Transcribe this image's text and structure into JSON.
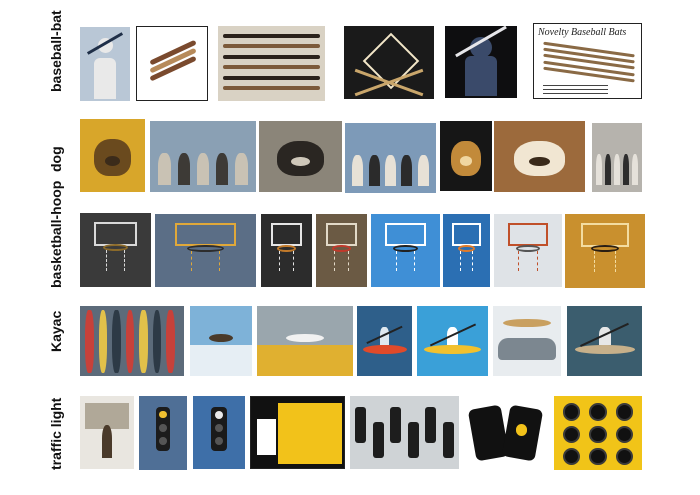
{
  "rows": [
    {
      "label": "baseball-bat",
      "thumbs": [
        {
          "name": "baseball-bat-photo-1",
          "bg": "#b9c7d6",
          "accent": "#1f2f48",
          "accent2": "#e9e9e9",
          "motif": "person"
        },
        {
          "name": "baseball-bat-photo-2",
          "bg": "#ffffff",
          "accent": "#7a4a2e",
          "accent2": "#b78a5a",
          "motif": "bats-diagonal",
          "framed": true
        },
        {
          "name": "baseball-bat-photo-3",
          "bg": "#d9d2c4",
          "accent": "#2a211a",
          "accent2": "#7c5a3a",
          "motif": "bats-horizontal"
        },
        {
          "name": "baseball-bat-photo-4",
          "bg": "#1a1a1a",
          "accent": "#c9a66b",
          "accent2": "#f2e6c8",
          "motif": "diamond"
        },
        {
          "name": "baseball-bat-photo-5",
          "bg": "#0e0e10",
          "accent": "#e6e6ea",
          "accent2": "#3a4a6a",
          "motif": "batter"
        },
        {
          "name": "baseball-bat-photo-6",
          "bg": "#ffffff",
          "accent": "#8a6a45",
          "accent2": "#444444",
          "motif": "catalog",
          "framed": true,
          "caption": "Novelty Baseball Bats"
        }
      ]
    },
    {
      "label": "dog",
      "thumbs": [
        {
          "name": "dog-photo-1",
          "bg": "#d8a62a",
          "accent": "#6a4a1e",
          "accent2": "#3b2b1a",
          "motif": "dog"
        },
        {
          "name": "dog-photo-2",
          "bg": "#8aa0b4",
          "accent": "#3d3a36",
          "accent2": "#c9c2b4",
          "motif": "street"
        },
        {
          "name": "dog-photo-3",
          "bg": "#8b8579",
          "accent": "#2a2622",
          "accent2": "#cfc8ba",
          "motif": "dog"
        },
        {
          "name": "dog-photo-4",
          "bg": "#7d9ab8",
          "accent": "#2b2b2b",
          "accent2": "#e7e1d6",
          "motif": "group"
        },
        {
          "name": "dog-photo-5",
          "bg": "#161616",
          "accent": "#c28a3a",
          "accent2": "#f0d6a0",
          "motif": "dog"
        },
        {
          "name": "dog-photo-6",
          "bg": "#9c6a3c",
          "accent": "#f1e6d2",
          "accent2": "#3a2a1a",
          "motif": "dog-face"
        },
        {
          "name": "dog-photo-7",
          "bg": "#b6b3ad",
          "accent": "#2d2d2d",
          "accent2": "#e5e1da",
          "motif": "group"
        }
      ]
    },
    {
      "label": "basketball-hoop",
      "thumbs": [
        {
          "name": "basketball-hoop-photo-1",
          "bg": "#3a3a3a",
          "accent": "#d9d9d9",
          "accent2": "#8b6a2a",
          "motif": "hoop"
        },
        {
          "name": "basketball-hoop-photo-2",
          "bg": "#5b6e86",
          "accent": "#e0a83a",
          "accent2": "#2d2d2d",
          "motif": "hoop"
        },
        {
          "name": "basketball-hoop-photo-3",
          "bg": "#2c2c2c",
          "accent": "#e6e6e6",
          "accent2": "#c27a2a",
          "motif": "hoop"
        },
        {
          "name": "basketball-hoop-photo-4",
          "bg": "#6b5a44",
          "accent": "#e2d9c8",
          "accent2": "#c0392b",
          "motif": "hoop"
        },
        {
          "name": "basketball-hoop-photo-5",
          "bg": "#3f8fd6",
          "accent": "#ffffff",
          "accent2": "#222222",
          "motif": "hoop"
        },
        {
          "name": "basketball-hoop-photo-6",
          "bg": "#2b6fb3",
          "accent": "#ffffff",
          "accent2": "#e07b2a",
          "motif": "hoop"
        },
        {
          "name": "basketball-hoop-photo-7",
          "bg": "#dfe3e7",
          "accent": "#c0502a",
          "accent2": "#555555",
          "motif": "hoop"
        },
        {
          "name": "basketball-hoop-photo-8",
          "bg": "#c9902e",
          "accent": "#f3dca0",
          "accent2": "#2a1e12",
          "motif": "hoop"
        }
      ]
    },
    {
      "label": "Kayac",
      "thumbs": [
        {
          "name": "kayak-photo-1",
          "bg": "#5c6b7a",
          "accent": "#c7413a",
          "accent2": "#e2c14a",
          "motif": "kayak-rack"
        },
        {
          "name": "kayak-photo-2",
          "bg": "#7eb2d8",
          "accent": "#4a3a2a",
          "accent2": "#e6eef4",
          "motif": "water"
        },
        {
          "name": "kayak-photo-3",
          "bg": "#9aa6ad",
          "accent": "#f1f1f1",
          "accent2": "#e0b030",
          "motif": "waterfall"
        },
        {
          "name": "kayak-photo-4",
          "bg": "#2e5f8a",
          "accent": "#e04a2a",
          "accent2": "#dfe8ef",
          "motif": "kayak"
        },
        {
          "name": "kayak-photo-5",
          "bg": "#3aa0d8",
          "accent": "#f2c12e",
          "accent2": "#ffffff",
          "motif": "kayak"
        },
        {
          "name": "kayak-photo-6",
          "bg": "#e8ecef",
          "accent": "#c9a060",
          "accent2": "#7c8790",
          "motif": "car"
        },
        {
          "name": "kayak-photo-7",
          "bg": "#3b5d6e",
          "accent": "#c7b08a",
          "accent2": "#e7e7e7",
          "motif": "kayak"
        }
      ]
    },
    {
      "label": "traffic light",
      "thumbs": [
        {
          "name": "traffic-light-photo-1",
          "bg": "#e9e6e0",
          "accent": "#4a3a2a",
          "accent2": "#b0a898",
          "motif": "street-snow"
        },
        {
          "name": "traffic-light-photo-2",
          "bg": "#4f6f96",
          "accent": "#1c1c1c",
          "accent2": "#f0c030",
          "motif": "signal"
        },
        {
          "name": "traffic-light-photo-3",
          "bg": "#3e6fa8",
          "accent": "#1a1a1a",
          "accent2": "#e9e9e9",
          "motif": "signal"
        },
        {
          "name": "traffic-light-photo-4",
          "bg": "#111111",
          "accent": "#f2c21a",
          "accent2": "#ffffff",
          "motif": "poster",
          "framed": true
        },
        {
          "name": "traffic-light-photo-5",
          "bg": "#cfd3d6",
          "accent": "#1d1d1d",
          "accent2": "#e2b020",
          "motif": "many-signals"
        },
        {
          "name": "traffic-light-photo-6",
          "bg": "#ffffff",
          "accent": "#111111",
          "accent2": "#f2c21a",
          "motif": "cards"
        },
        {
          "name": "traffic-light-photo-7",
          "bg": "#f1c418",
          "accent": "#111111",
          "accent2": "#3a3a3a",
          "motif": "grid-lights"
        }
      ]
    }
  ]
}
